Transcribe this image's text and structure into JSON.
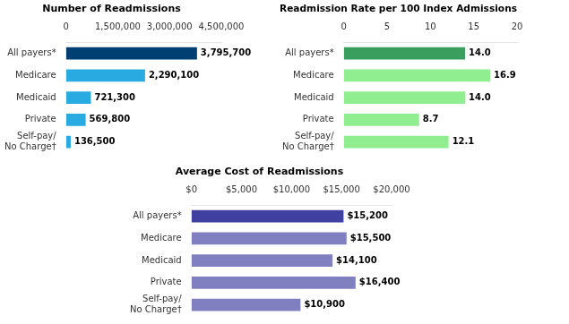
{
  "chart_data": [
    {
      "type": "bar",
      "orientation": "horizontal",
      "title": "Number of Readmissions",
      "categories": [
        "All payers*",
        "Medicare",
        "Medicaid",
        "Private",
        "Self-pay/\nNo Charge†"
      ],
      "values": [
        3795700,
        2290100,
        721300,
        569800,
        136500
      ],
      "value_labels": [
        "3,795,700",
        "2,290,100",
        "721,300",
        "569,800",
        "136,500"
      ],
      "data_labels": true,
      "colors": [
        "#003F72",
        "#29ABE2",
        "#29ABE2",
        "#29ABE2",
        "#29ABE2"
      ],
      "xlim": [
        0,
        4500000
      ],
      "xticks": [
        0,
        {
          "value": 1500000,
          "label": "1,500,000"
        },
        {
          "value": 3000000,
          "label": "3,000,000"
        },
        {
          "value": 4500000,
          "label": "4,500,000"
        }
      ],
      "grid": false
    },
    {
      "type": "bar",
      "orientation": "horizontal",
      "title": "Readmission Rate per 100 Index Admissions",
      "categories": [
        "All payers*",
        "Medicare",
        "Medicaid",
        "Private",
        "Self-pay/\nNo Charge†"
      ],
      "values": [
        14.0,
        16.9,
        14.0,
        8.7,
        12.1
      ],
      "value_labels": [
        "14.0",
        "16.9",
        "14.0",
        "8.7",
        "12.1"
      ],
      "data_labels": true,
      "colors": [
        "#3A9E5F",
        "#90EE90",
        "#90EE90",
        "#90EE90",
        "#90EE90"
      ],
      "xlim": [
        0,
        20
      ],
      "xticks": [
        0,
        5,
        10,
        15,
        20
      ],
      "grid": false
    },
    {
      "type": "bar",
      "orientation": "horizontal",
      "title": "Average Cost of Readmissions",
      "categories": [
        "All payers*",
        "Medicare",
        "Medicaid",
        "Private",
        "Self-pay/\nNo Charge†"
      ],
      "values": [
        15200,
        15500,
        14100,
        16400,
        10900
      ],
      "value_labels": [
        "$15,200",
        "$15,500",
        "$14,100",
        "$16,400",
        "$10,900"
      ],
      "data_labels": true,
      "colors": [
        "#4040A0",
        "#8080C0",
        "#8080C0",
        "#8080C0",
        "#8080C0"
      ],
      "xlim": [
        0,
        20000
      ],
      "xticks": [
        {
          "value": 0,
          "label": "$0"
        },
        {
          "value": 5000,
          "label": "$5,000"
        },
        {
          "value": 10000,
          "label": "$10,000"
        },
        {
          "value": 15000,
          "label": "$15,000"
        },
        {
          "value": 20000,
          "label": "$20,000"
        }
      ],
      "grid": false
    }
  ]
}
